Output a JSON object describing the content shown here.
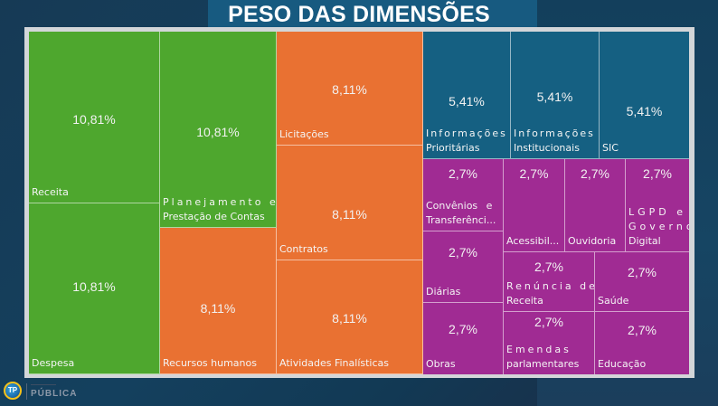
{
  "title": "PESO DAS DIMENSÕES",
  "footer": {
    "logo_text": "TP",
    "brand": "PÚBLICA"
  },
  "colors": {
    "green": "#4ea72e",
    "orange": "#e97132",
    "blue": "#156082",
    "purple": "#a02b93"
  },
  "chart_data": {
    "type": "treemap",
    "title": "PESO DAS DIMENSÕES",
    "unit": "%",
    "groups": [
      {
        "name": "green",
        "color": "#4ea72e",
        "items": [
          {
            "label": "Receita",
            "value": 10.81,
            "value_label": "10,81%"
          },
          {
            "label": "Despesa",
            "value": 10.81,
            "value_label": "10,81%"
          },
          {
            "label": "Planejamento e Prestação de Contas",
            "l1": "Planejamento e",
            "l2": "Prestação de Contas",
            "value": 10.81,
            "value_label": "10,81%"
          }
        ]
      },
      {
        "name": "orange",
        "color": "#e97132",
        "items": [
          {
            "label": "Recursos humanos",
            "value": 8.11,
            "value_label": "8,11%"
          },
          {
            "label": "Licitações",
            "value": 8.11,
            "value_label": "8,11%"
          },
          {
            "label": "Contratos",
            "value": 8.11,
            "value_label": "8,11%"
          },
          {
            "label": "Atividades Finalísticas",
            "value": 8.11,
            "value_label": "8,11%"
          }
        ]
      },
      {
        "name": "blue",
        "color": "#156082",
        "items": [
          {
            "label": "Informações Prioritárias",
            "l1": "Informações",
            "l2": "Prioritárias",
            "value": 5.41,
            "value_label": "5,41%"
          },
          {
            "label": "Informações Institucionais",
            "l1": "Informações",
            "l2": "Institucionais",
            "value": 5.41,
            "value_label": "5,41%"
          },
          {
            "label": "SIC",
            "value": 5.41,
            "value_label": "5,41%"
          }
        ]
      },
      {
        "name": "purple",
        "color": "#a02b93",
        "items": [
          {
            "label": "Convênios e Transferênci...",
            "l1": "Convênios e",
            "l2": "Transferênci...",
            "value": 2.7,
            "value_label": "2,7%"
          },
          {
            "label": "Diárias",
            "value": 2.7,
            "value_label": "2,7%"
          },
          {
            "label": "Obras",
            "value": 2.7,
            "value_label": "2,7%"
          },
          {
            "label": "Acessibil...",
            "value": 2.7,
            "value_label": "2,7%"
          },
          {
            "label": "Ouvidoria",
            "value": 2.7,
            "value_label": "2,7%"
          },
          {
            "label": "LGPD e Governo Digital",
            "l1": "LGPD e",
            "l1b": "Governo",
            "l2": "Digital",
            "value": 2.7,
            "value_label": "2,7%"
          },
          {
            "label": "Renúncia de Receita",
            "l1": "Renúncia de",
            "l2": "Receita",
            "value": 2.7,
            "value_label": "2,7%"
          },
          {
            "label": "Saúde",
            "value": 2.7,
            "value_label": "2,7%"
          },
          {
            "label": "Emendas parlamentares",
            "l1": "Emendas",
            "l2": "parlamentares",
            "value": 2.7,
            "value_label": "2,7%"
          },
          {
            "label": "Educação",
            "value": 2.7,
            "value_label": "2,7%"
          }
        ]
      }
    ]
  }
}
